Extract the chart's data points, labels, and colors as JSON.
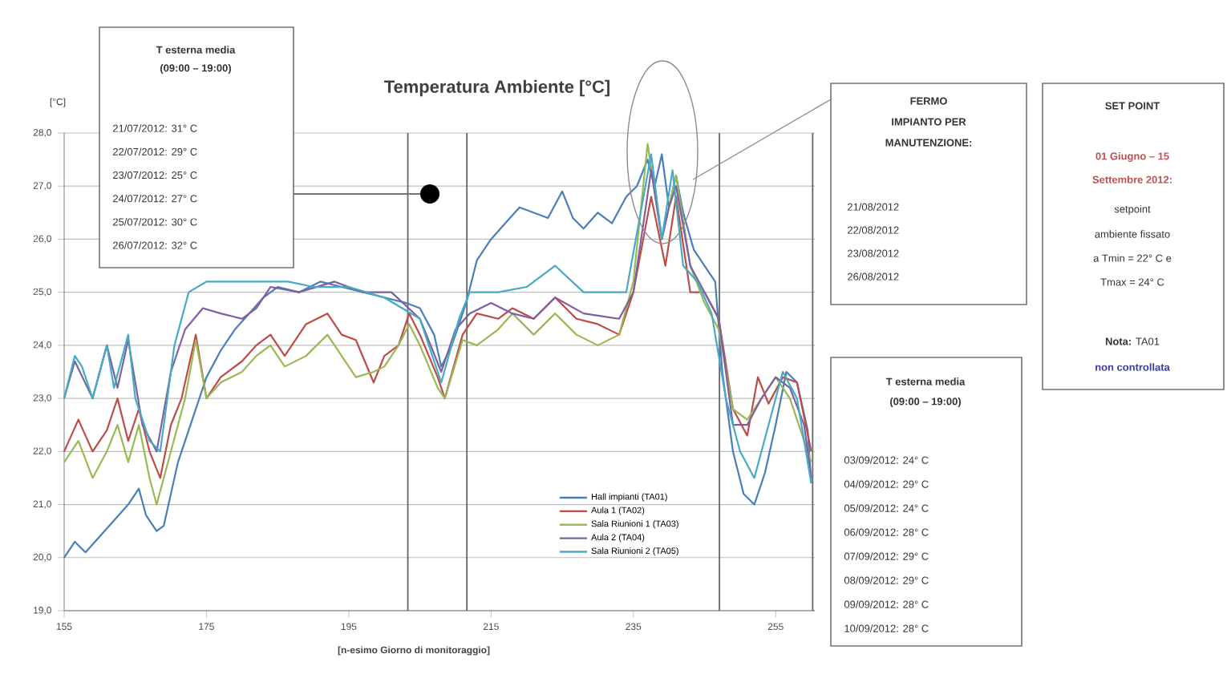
{
  "chart_data": {
    "type": "line",
    "title": "Temperatura Ambiente [°C]",
    "xlabel": "[n-esimo Giorno di monitoraggio]",
    "ylabel": "[°C]",
    "xlim": [
      155,
      260.5
    ],
    "xticks": [
      155,
      175,
      195,
      215,
      235,
      255
    ],
    "ylim": [
      19,
      28
    ],
    "yticks": [
      {
        "value": 19,
        "label": "19,0"
      },
      {
        "value": 20,
        "label": "20,0"
      },
      {
        "value": 21,
        "label": "21,0"
      },
      {
        "value": 22,
        "label": "22,0"
      },
      {
        "value": 23,
        "label": "23,0"
      },
      {
        "value": 24,
        "label": "24,0"
      },
      {
        "value": 25,
        "label": "25,0"
      },
      {
        "value": 26,
        "label": "26,0"
      },
      {
        "value": 27,
        "label": "27,0"
      },
      {
        "value": 28,
        "label": "28,0"
      }
    ],
    "grid": "y",
    "legend": "bottom right",
    "ref_lines": [
      {
        "axis": "x",
        "value": 203.3
      },
      {
        "axis": "x",
        "value": 211.6
      },
      {
        "axis": "x",
        "value": 247.1
      },
      {
        "axis": "x",
        "value": 260.2
      }
    ],
    "series": [
      {
        "name": "Hall impianti (TA01)",
        "color": "#4a7ebb",
        "x": [
          155,
          156.5,
          158,
          160,
          162,
          164,
          165.5,
          166.5,
          168,
          169,
          171,
          173,
          175,
          177,
          179,
          181,
          183,
          185,
          188,
          191,
          194,
          197,
          200,
          203,
          205,
          207,
          208,
          209.5,
          211.5,
          213,
          215,
          217,
          219,
          221,
          223,
          225,
          226.5,
          228,
          230,
          232,
          234,
          235.5,
          237,
          238,
          239,
          240,
          241,
          242,
          243.5,
          245,
          246.5,
          247.5,
          249,
          250.5,
          252,
          253.5,
          255,
          256.5,
          258,
          259.5,
          260
        ],
        "values": [
          20.0,
          20.3,
          20.1,
          20.4,
          20.7,
          21.0,
          21.3,
          20.8,
          20.5,
          20.6,
          21.8,
          22.6,
          23.4,
          23.9,
          24.3,
          24.6,
          24.9,
          25.1,
          25.0,
          25.2,
          25.1,
          25.0,
          24.9,
          24.8,
          24.7,
          24.2,
          23.6,
          24.0,
          24.8,
          25.6,
          26.0,
          26.3,
          26.6,
          26.5,
          26.4,
          26.9,
          26.4,
          26.2,
          26.5,
          26.3,
          26.8,
          27.0,
          27.5,
          27.0,
          27.6,
          26.6,
          27.2,
          26.5,
          25.8,
          25.5,
          25.2,
          23.5,
          22.0,
          21.2,
          21.0,
          21.6,
          22.5,
          23.5,
          23.3,
          22.4,
          21.4
        ]
      },
      {
        "name": "Aula 1 (TA02)",
        "color": "#be4b48",
        "x": [
          155,
          157,
          159,
          161,
          162.5,
          164,
          165.5,
          167,
          168.5,
          170,
          171.5,
          173.5,
          175,
          177,
          180,
          182,
          184,
          186,
          189,
          192,
          194,
          196,
          198.5,
          200,
          202,
          203.5,
          205,
          207.5,
          208.5,
          211,
          213,
          216,
          218,
          221,
          224,
          227,
          230,
          233,
          235,
          237.5,
          239.5,
          241,
          243,
          245,
          247,
          249,
          251,
          252.5,
          254,
          256,
          258,
          260
        ],
        "values": [
          22.0,
          22.6,
          22.0,
          22.4,
          23.0,
          22.2,
          22.8,
          22.0,
          21.5,
          22.5,
          23.0,
          24.2,
          23.0,
          23.4,
          23.7,
          24.0,
          24.2,
          23.8,
          24.4,
          24.6,
          24.2,
          24.1,
          23.3,
          23.8,
          24.0,
          24.6,
          24.2,
          23.4,
          23.0,
          24.2,
          24.6,
          24.5,
          24.7,
          24.5,
          24.9,
          24.5,
          24.4,
          24.2,
          25.0,
          26.8,
          25.5,
          26.8,
          25.0,
          25.0,
          24.5,
          22.8,
          22.3,
          23.4,
          22.9,
          23.4,
          23.3,
          22.0
        ]
      },
      {
        "name": "Sala Riunioni 1 (TA03)",
        "color": "#98b954",
        "x": [
          155,
          157,
          159,
          161,
          162.5,
          164,
          165.5,
          167,
          168,
          170,
          172,
          173.5,
          175,
          177,
          180,
          182,
          184,
          186,
          189,
          192,
          196,
          198.5,
          200,
          202,
          203.5,
          205,
          207.5,
          208.5,
          211,
          213,
          216,
          218,
          221,
          224,
          227,
          230,
          233,
          235,
          237,
          239,
          241,
          243,
          245,
          247,
          249,
          251,
          253,
          255,
          257,
          259,
          260
        ],
        "values": [
          21.8,
          22.2,
          21.5,
          22.0,
          22.5,
          21.8,
          22.5,
          21.5,
          21.0,
          22.0,
          23.0,
          24.1,
          23.0,
          23.3,
          23.5,
          23.8,
          24.0,
          23.6,
          23.8,
          24.2,
          23.4,
          23.5,
          23.6,
          24.0,
          24.4,
          24.0,
          23.2,
          23.0,
          24.1,
          24.0,
          24.3,
          24.6,
          24.2,
          24.6,
          24.2,
          24.0,
          24.2,
          25.2,
          27.8,
          26.0,
          27.2,
          25.5,
          24.8,
          24.3,
          22.8,
          22.6,
          23.0,
          23.4,
          23.0,
          22.2,
          21.8
        ]
      },
      {
        "name": "Aula 2 (TA04)",
        "color": "#7d60a0",
        "x": [
          155,
          156.5,
          159,
          161,
          162.5,
          164,
          166,
          168,
          170,
          172,
          174.5,
          177,
          180,
          182,
          184,
          188,
          193,
          197,
          201,
          205,
          208,
          210,
          212,
          215,
          218,
          221,
          224,
          228,
          233,
          235,
          237.5,
          239,
          240,
          241,
          243,
          245,
          247,
          249,
          251,
          253,
          255,
          257,
          259,
          260
        ],
        "values": [
          23.0,
          23.7,
          23.0,
          24.0,
          23.2,
          24.1,
          22.5,
          22.0,
          23.5,
          24.3,
          24.7,
          24.6,
          24.5,
          24.7,
          25.1,
          25.0,
          25.2,
          25.0,
          25.0,
          24.5,
          23.5,
          24.3,
          24.6,
          24.8,
          24.6,
          24.5,
          24.9,
          24.6,
          24.5,
          25.0,
          27.3,
          26.0,
          26.6,
          27.0,
          25.5,
          25.0,
          24.5,
          22.5,
          22.5,
          23.0,
          23.4,
          23.2,
          22.5,
          21.5
        ]
      },
      {
        "name": "Sala Riunioni 2 (TA05)",
        "color": "#46aac5",
        "x": [
          155,
          156.5,
          157.5,
          159,
          161,
          162,
          164,
          165,
          167,
          168.5,
          170.5,
          172.5,
          175,
          180,
          186.5,
          190,
          195,
          200,
          205,
          208,
          210.5,
          212,
          216,
          220,
          224,
          228,
          231,
          234,
          237.5,
          239,
          240.5,
          242,
          244,
          246,
          248,
          250,
          252,
          254,
          256,
          258,
          260
        ],
        "values": [
          23.0,
          23.8,
          23.6,
          23.0,
          24.0,
          23.2,
          24.2,
          23.0,
          22.2,
          22.0,
          24.0,
          25.0,
          25.2,
          25.2,
          25.2,
          25.1,
          25.1,
          24.9,
          24.5,
          23.3,
          24.5,
          25.0,
          25.0,
          25.1,
          25.5,
          25.0,
          25.0,
          25.0,
          27.6,
          26.0,
          27.3,
          25.5,
          25.2,
          24.6,
          23.0,
          22.0,
          21.5,
          22.5,
          23.5,
          23.0,
          21.4
        ]
      }
    ],
    "annotations": [
      "T esterna media",
      "(09:00 – 19:00)",
      "21/07/2012: 31° C",
      "22/07/2012: 29° C",
      "23/07/2012: 25° C",
      "24/07/2012: 27° C",
      "25/07/2012: 30° C",
      "26/07/2012: 32° C",
      "FERMO",
      "IMPIANTO PER",
      "MANUTENZIONE:",
      "21/08/2012",
      "22/08/2012",
      "23/08/2012",
      "26/08/2012",
      "SET POINT",
      "01 Giugno – 15",
      "Settembre 2012:",
      "setpoint",
      "ambiente fissato",
      "a Tmin = 22° C e",
      "Tmax = 24° C",
      "**Nota:** TA01",
      "non controllata",
      "T esterna media",
      "(09:00 – 19:00)",
      "03/09/2012: 24° C",
      "04/09/2012: 29° C",
      "05/09/2012: 24° C",
      "06/09/2012: 28° C",
      "07/09/2012: 29° C",
      "08/09/2012: 29° C",
      "09/09/2012: 28° C",
      "10/09/2012: 28° C"
    ]
  }
}
